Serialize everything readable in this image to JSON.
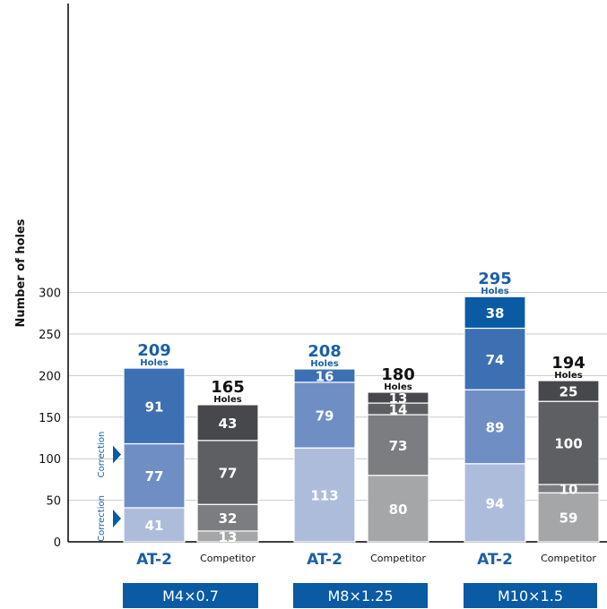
{
  "chart_data": {
    "type": "bar",
    "stacked": true,
    "ylabel": "Number of holes",
    "ylim": [
      0,
      300
    ],
    "yticks": [
      0,
      50,
      100,
      150,
      200,
      250,
      300
    ],
    "grid": true,
    "total_unit": "Holes",
    "correction_label": "Correction",
    "colors": {
      "at2": [
        "#aebcdc",
        "#6f8fc4",
        "#3d6fb3",
        "#0a5aa4"
      ],
      "competitor": [
        "#a5a6a8",
        "#7c7d80",
        "#5e5f62",
        "#47484b"
      ],
      "at2_total": "#1a5fa8",
      "competitor_total": "#111111",
      "group_box": "#0a5aa4"
    },
    "groups": [
      {
        "name": "M4×0.7",
        "bars": [
          {
            "label": "AT-2",
            "kind": "at2",
            "total": 209,
            "segments": [
              41,
              77,
              91
            ],
            "corrections": [
              41,
              118
            ]
          },
          {
            "label": "Competitor",
            "kind": "competitor",
            "total": 165,
            "segments": [
              13,
              32,
              77,
              43
            ]
          }
        ]
      },
      {
        "name": "M8×1.25",
        "bars": [
          {
            "label": "AT-2",
            "kind": "at2",
            "total": 208,
            "segments": [
              113,
              79,
              16
            ]
          },
          {
            "label": "Competitor",
            "kind": "competitor",
            "total": 180,
            "segments": [
              80,
              73,
              14,
              13
            ]
          }
        ]
      },
      {
        "name": "M10×1.5",
        "bars": [
          {
            "label": "AT-2",
            "kind": "at2",
            "total": 295,
            "segments": [
              94,
              89,
              74,
              38
            ]
          },
          {
            "label": "Competitor",
            "kind": "competitor",
            "total": 194,
            "segments": [
              59,
              10,
              100,
              25
            ]
          }
        ]
      }
    ]
  }
}
